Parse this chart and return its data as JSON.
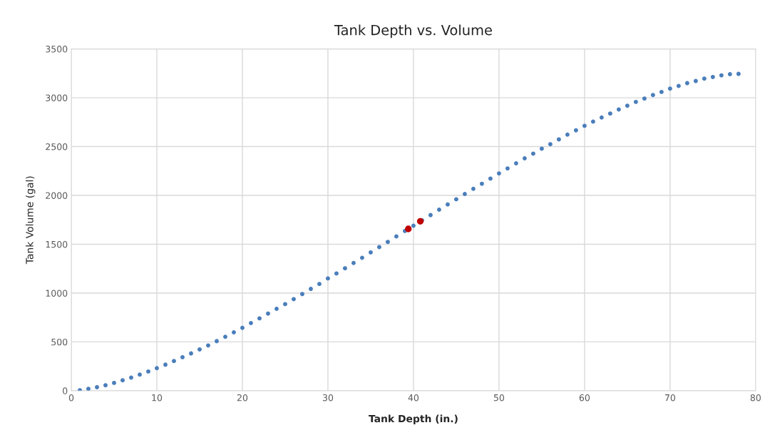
{
  "chart_data": {
    "type": "scatter",
    "title": "Tank Depth vs. Volume",
    "xlabel": "Tank Depth (in.)",
    "ylabel": "Tank Volume (gal)",
    "xlim": [
      0,
      80
    ],
    "xticks": [
      0,
      10,
      20,
      30,
      40,
      50,
      60,
      70,
      80
    ],
    "ylim": [
      0,
      3500
    ],
    "yticks": [
      0,
      500,
      1000,
      1500,
      2000,
      2500,
      3000,
      3500
    ],
    "grid": true,
    "legend": false,
    "marker": "circle",
    "series": [
      {
        "color": "#4a7ebb",
        "x": [
          1,
          2,
          3,
          4,
          5,
          6,
          7,
          8,
          9,
          10,
          11,
          12,
          13,
          14,
          15,
          16,
          17,
          18,
          19,
          20,
          21,
          22,
          23,
          24,
          25,
          26,
          27,
          28,
          29,
          30,
          31,
          32,
          33,
          34,
          35,
          36,
          37,
          38,
          39,
          40,
          41,
          42,
          43,
          44,
          45,
          46,
          47,
          48,
          49,
          50,
          51,
          52,
          53,
          54,
          55,
          56,
          57,
          58,
          59,
          60,
          61,
          62,
          63,
          64,
          65,
          66,
          67,
          68,
          69,
          70,
          71,
          72,
          73,
          74,
          75,
          76,
          77,
          78
        ],
        "values": [
          5,
          20,
          36,
          56,
          80,
          107,
          134,
          165,
          197,
          231,
          267,
          304,
          343,
          382,
          423,
          464,
          508,
          552,
          598,
          644,
          693,
          741,
          790,
          839,
          887,
          938,
          990,
          1043,
          1094,
          1150,
          1201,
          1254,
          1308,
          1361,
          1417,
          1471,
          1524,
          1580,
          1636,
          1690,
          1745,
          1799,
          1854,
          1908,
          1961,
          2015,
          2068,
          2120,
          2173,
          2226,
          2277,
          2329,
          2380,
          2428,
          2479,
          2525,
          2574,
          2623,
          2667,
          2713,
          2756,
          2798,
          2839,
          2880,
          2919,
          2958,
          2992,
          3028,
          3060,
          3094,
          3121,
          3150,
          3172,
          3196,
          3213,
          3230,
          3242,
          3245
        ]
      },
      {
        "color": "#c00000",
        "x": [
          39.4,
          40.8
        ],
        "values": [
          1657,
          1735
        ]
      }
    ]
  }
}
